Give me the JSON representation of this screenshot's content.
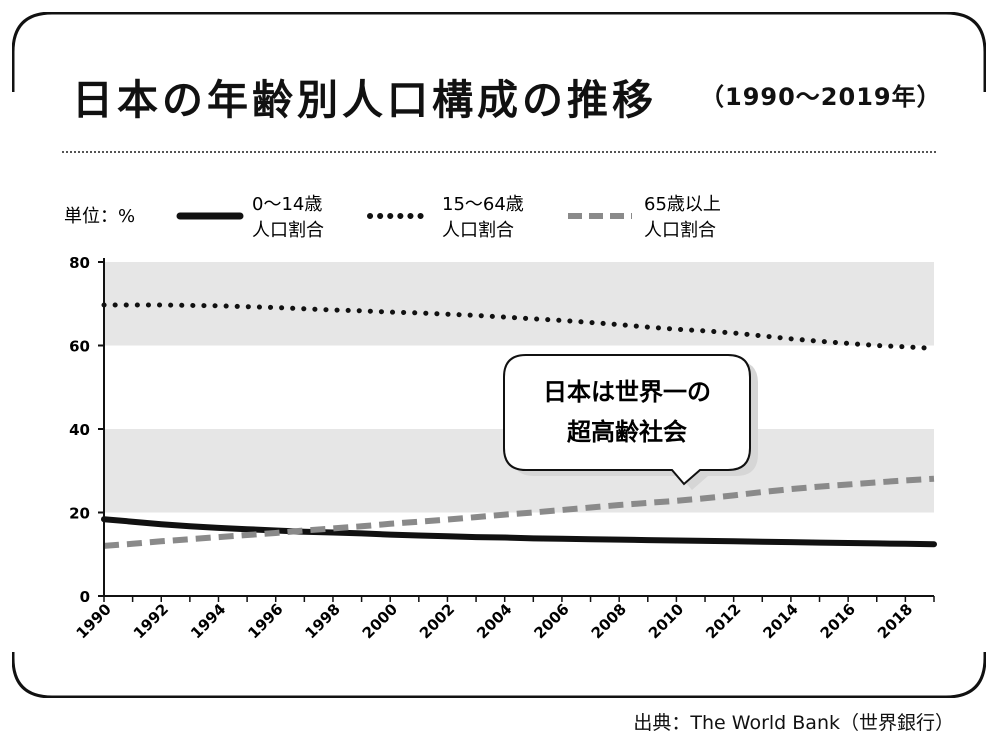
{
  "title": "日本の年齢別人口構成の推移",
  "subtitle": "（1990～2019年）",
  "source": "出典：The World Bank（世界銀行）",
  "unit_label": "単位：%",
  "callout": {
    "line1": "日本は世界一の",
    "line2": "超高齢社会"
  },
  "legend": [
    {
      "label_line1": "0～14歳",
      "label_line2": "人口割合",
      "style": "solid",
      "color": "#111111"
    },
    {
      "label_line1": "15～64歳",
      "label_line2": "人口割合",
      "style": "dotted",
      "color": "#111111"
    },
    {
      "label_line1": "65歳以上",
      "label_line2": "人口割合",
      "style": "dashed",
      "color": "#8a8a8a"
    }
  ],
  "chart_data": {
    "type": "line",
    "title": "日本の年齢別人口構成の推移",
    "ylabel": "単位：%",
    "xlabel": "",
    "ylim": [
      0,
      80
    ],
    "xlim": [
      1990,
      2019
    ],
    "yticks": [
      0,
      20,
      40,
      60,
      80
    ],
    "xticks": [
      "1990",
      "1992",
      "1994",
      "1996",
      "1998",
      "2000",
      "2002",
      "2004",
      "2006",
      "2008",
      "2010",
      "2012",
      "2014",
      "2016",
      "2018"
    ],
    "grid": "alternating grey bands 20–40 and 60–80",
    "legend_position": "top",
    "x": [
      1990,
      1991,
      1992,
      1993,
      1994,
      1995,
      1996,
      1997,
      1998,
      1999,
      2000,
      2001,
      2002,
      2003,
      2004,
      2005,
      2006,
      2007,
      2008,
      2009,
      2010,
      2011,
      2012,
      2013,
      2014,
      2015,
      2016,
      2017,
      2018,
      2019
    ],
    "series": [
      {
        "name": "0～14歳 人口割合",
        "values": [
          18.4,
          17.8,
          17.2,
          16.7,
          16.3,
          16.0,
          15.7,
          15.4,
          15.2,
          15.0,
          14.7,
          14.5,
          14.3,
          14.1,
          14.0,
          13.8,
          13.7,
          13.6,
          13.5,
          13.4,
          13.3,
          13.2,
          13.1,
          13.0,
          12.9,
          12.8,
          12.7,
          12.6,
          12.5,
          12.4
        ]
      },
      {
        "name": "15～64歳 人口割合",
        "values": [
          69.7,
          69.7,
          69.7,
          69.6,
          69.5,
          69.3,
          69.1,
          68.8,
          68.5,
          68.3,
          68.0,
          67.8,
          67.5,
          67.2,
          66.8,
          66.4,
          66.0,
          65.5,
          65.0,
          64.4,
          63.9,
          63.5,
          63.0,
          62.3,
          61.6,
          61.0,
          60.5,
          60.0,
          59.7,
          59.3
        ]
      },
      {
        "name": "65歳以上 人口割合",
        "values": [
          12.0,
          12.5,
          13.1,
          13.6,
          14.1,
          14.6,
          15.1,
          15.7,
          16.2,
          16.7,
          17.3,
          17.8,
          18.3,
          18.9,
          19.5,
          20.0,
          20.6,
          21.2,
          21.8,
          22.3,
          22.8,
          23.4,
          24.1,
          24.9,
          25.6,
          26.2,
          26.7,
          27.2,
          27.7,
          28.1
        ]
      }
    ]
  }
}
